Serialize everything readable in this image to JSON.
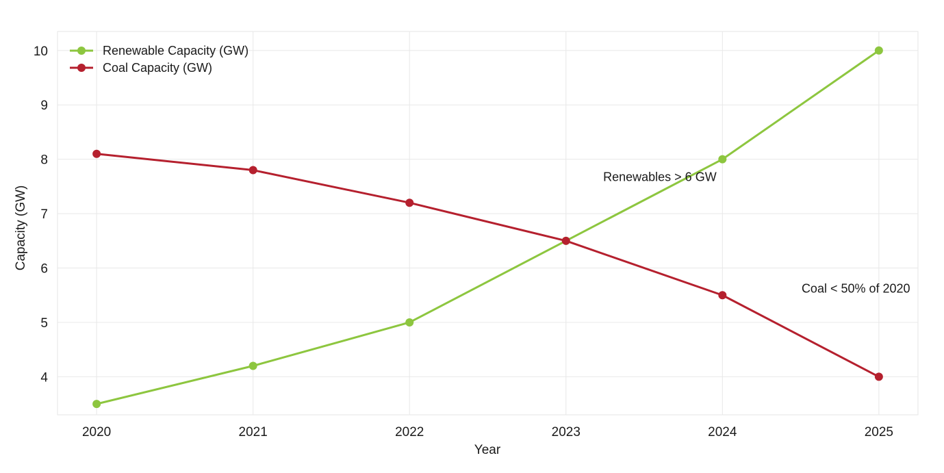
{
  "chart_data": {
    "type": "line",
    "title": "",
    "xlabel": "Year",
    "ylabel": "Capacity (GW)",
    "x": [
      2020,
      2021,
      2022,
      2023,
      2024,
      2025
    ],
    "x_tick_labels": [
      "2020",
      "2021",
      "2022",
      "2023",
      "2024",
      "2025"
    ],
    "y_ticks": [
      4,
      5,
      6,
      7,
      8,
      9,
      10
    ],
    "y_tick_labels": [
      "4",
      "5",
      "6",
      "7",
      "8",
      "9",
      "10"
    ],
    "ylim": [
      3.3,
      10.35
    ],
    "xlim": [
      2019.75,
      2025.25
    ],
    "grid": true,
    "legend_position": "top-left",
    "series": [
      {
        "name": "Renewable Capacity (GW)",
        "color": "#8dc63f",
        "values": [
          3.5,
          4.2,
          5.0,
          6.5,
          8.0,
          10.0
        ]
      },
      {
        "name": "Coal Capacity (GW)",
        "color": "#b5202e",
        "values": [
          8.1,
          7.8,
          7.2,
          6.5,
          5.5,
          4.0
        ]
      }
    ],
    "annotations": [
      {
        "text": "Renewables > 6 GW",
        "x": 2023.6,
        "y": 7.6
      },
      {
        "text": "Coal < 50% of 2020",
        "x": 2025.2,
        "y": 5.55
      }
    ]
  }
}
